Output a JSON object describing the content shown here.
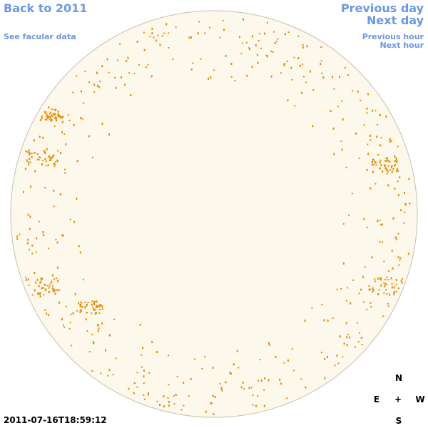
{
  "header": {
    "back_link": "Back to 2011",
    "facular_link": "See facular data",
    "previous_day": "Previous day",
    "next_day": "Next day",
    "previous_hour": "Previous hour",
    "next_hour": "Next hour"
  },
  "timestamp": "2011-07-16T18:59:12",
  "compass": {
    "north": "N",
    "east": "E",
    "center": "+",
    "west": "W",
    "south": "S"
  }
}
